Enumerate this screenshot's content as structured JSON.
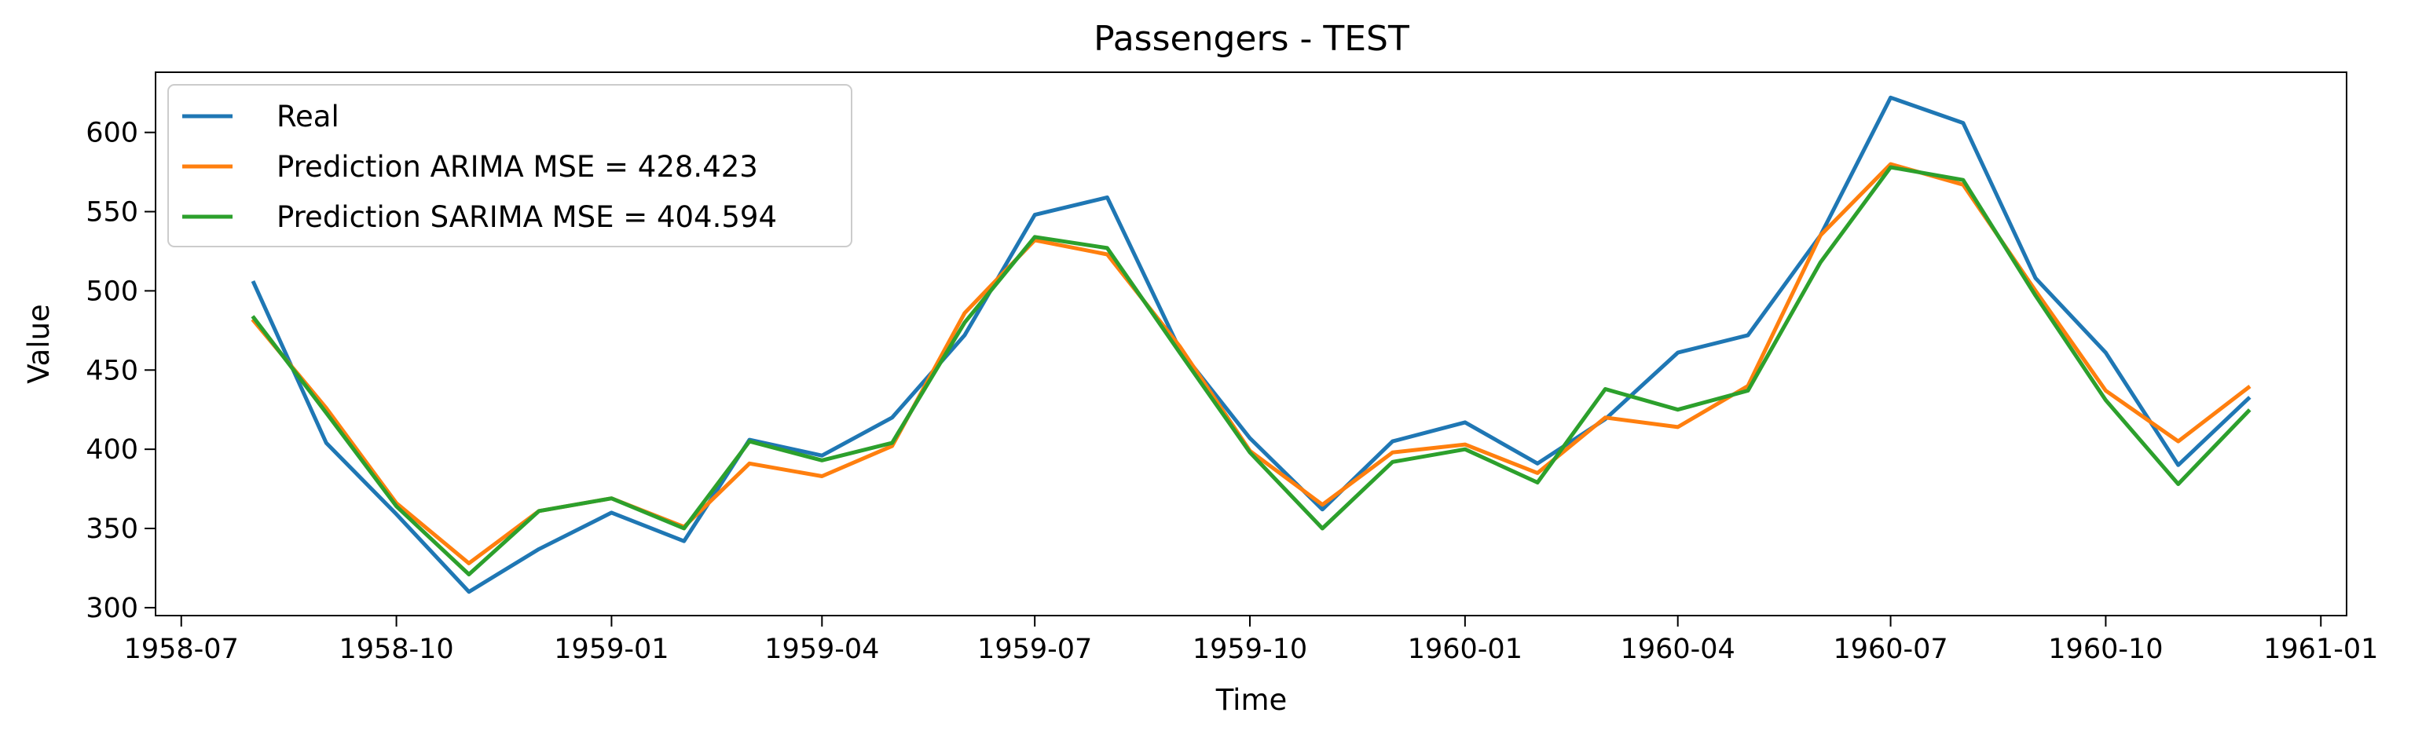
{
  "chart_data": {
    "type": "line",
    "title": "Passengers - TEST",
    "xlabel": "Time",
    "ylabel": "Value",
    "x": [
      "1958-08",
      "1958-09",
      "1958-10",
      "1958-11",
      "1958-12",
      "1959-01",
      "1959-02",
      "1959-03",
      "1959-04",
      "1959-05",
      "1959-06",
      "1959-07",
      "1959-08",
      "1959-09",
      "1959-10",
      "1959-11",
      "1959-12",
      "1960-01",
      "1960-02",
      "1960-03",
      "1960-04",
      "1960-05",
      "1960-06",
      "1960-07",
      "1960-08",
      "1960-09",
      "1960-10",
      "1960-11",
      "1960-12"
    ],
    "xlim": [
      "1958-06-20",
      "1961-01-12"
    ],
    "ylim": [
      295,
      638
    ],
    "x_ticks": [
      "1958-07",
      "1958-10",
      "1959-01",
      "1959-04",
      "1959-07",
      "1959-10",
      "1960-01",
      "1960-04",
      "1960-07",
      "1960-10",
      "1961-01"
    ],
    "y_ticks": [
      300,
      350,
      400,
      450,
      500,
      550,
      600
    ],
    "grid": false,
    "legend_position": "upper-left",
    "series": [
      {
        "name": "Real",
        "color": "#1f77b4",
        "values": [
          505,
          404,
          359,
          310,
          337,
          360,
          342,
          406,
          396,
          420,
          472,
          548,
          559,
          463,
          407,
          362,
          405,
          417,
          391,
          419,
          461,
          472,
          535,
          622,
          606,
          508,
          461,
          390,
          432
        ]
      },
      {
        "name": "Prediction ARIMA MSE = 428.423",
        "color": "#ff7f0e",
        "values": [
          481,
          426,
          366,
          328,
          361,
          369,
          351,
          391,
          383,
          402,
          486,
          532,
          523,
          465,
          399,
          365,
          398,
          403,
          385,
          420,
          414,
          440,
          535,
          580,
          567,
          500,
          437,
          405,
          439
        ]
      },
      {
        "name": "Prediction SARIMA MSE = 404.594",
        "color": "#2ca02c",
        "values": [
          483,
          423,
          364,
          321,
          361,
          369,
          350,
          405,
          393,
          404,
          480,
          534,
          527,
          461,
          398,
          350,
          392,
          400,
          379,
          438,
          425,
          437,
          518,
          578,
          570,
          497,
          431,
          378,
          424
        ]
      }
    ]
  }
}
